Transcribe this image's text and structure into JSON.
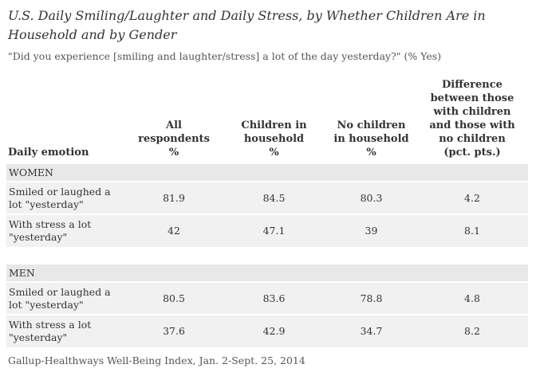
{
  "title": "U.S. Daily Smiling/Laughter and Daily Stress, by Whether Children Are in Household and by Gender",
  "subtitle": "\"Did you experience [smiling and laughter/stress] a lot of the day yesterday?\" (% Yes)",
  "source": "Gallup-Healthways Well-Being Index, Jan. 2-Sept. 25, 2014",
  "chart_data": {
    "type": "table",
    "columns": [
      "Daily emotion",
      "All respondents %",
      "Children in household %",
      "No children in household %",
      "Difference between those with children and those with no children (pct. pts.)"
    ],
    "header": {
      "col0": "Daily emotion",
      "col1": [
        "All",
        "respondents",
        "%"
      ],
      "col2": [
        "Children in",
        "household",
        "%"
      ],
      "col3": [
        "No children",
        "in household",
        "%"
      ],
      "col4": [
        "Difference",
        "between those",
        "with children",
        "and those with",
        "no children",
        "(pct. pts.)"
      ]
    },
    "sections": [
      {
        "name": "WOMEN",
        "rows": [
          {
            "label": "Smiled or laughed a lot \"yesterday\"",
            "values": [
              "81.9",
              "84.5",
              "80.3",
              "4.2"
            ]
          },
          {
            "label": "With stress a lot \"yesterday\"",
            "values": [
              "42",
              "47.1",
              "39",
              "8.1"
            ]
          }
        ]
      },
      {
        "name": "MEN",
        "rows": [
          {
            "label": "Smiled or laughed a lot \"yesterday\"",
            "values": [
              "80.5",
              "83.6",
              "78.8",
              "4.8"
            ]
          },
          {
            "label": "With stress a lot \"yesterday\"",
            "values": [
              "37.6",
              "42.9",
              "34.7",
              "8.2"
            ]
          }
        ]
      }
    ]
  },
  "colors": {
    "section_bg": "#e8e8e8",
    "row_shade": "#f1f1f1",
    "text": "#333333"
  }
}
